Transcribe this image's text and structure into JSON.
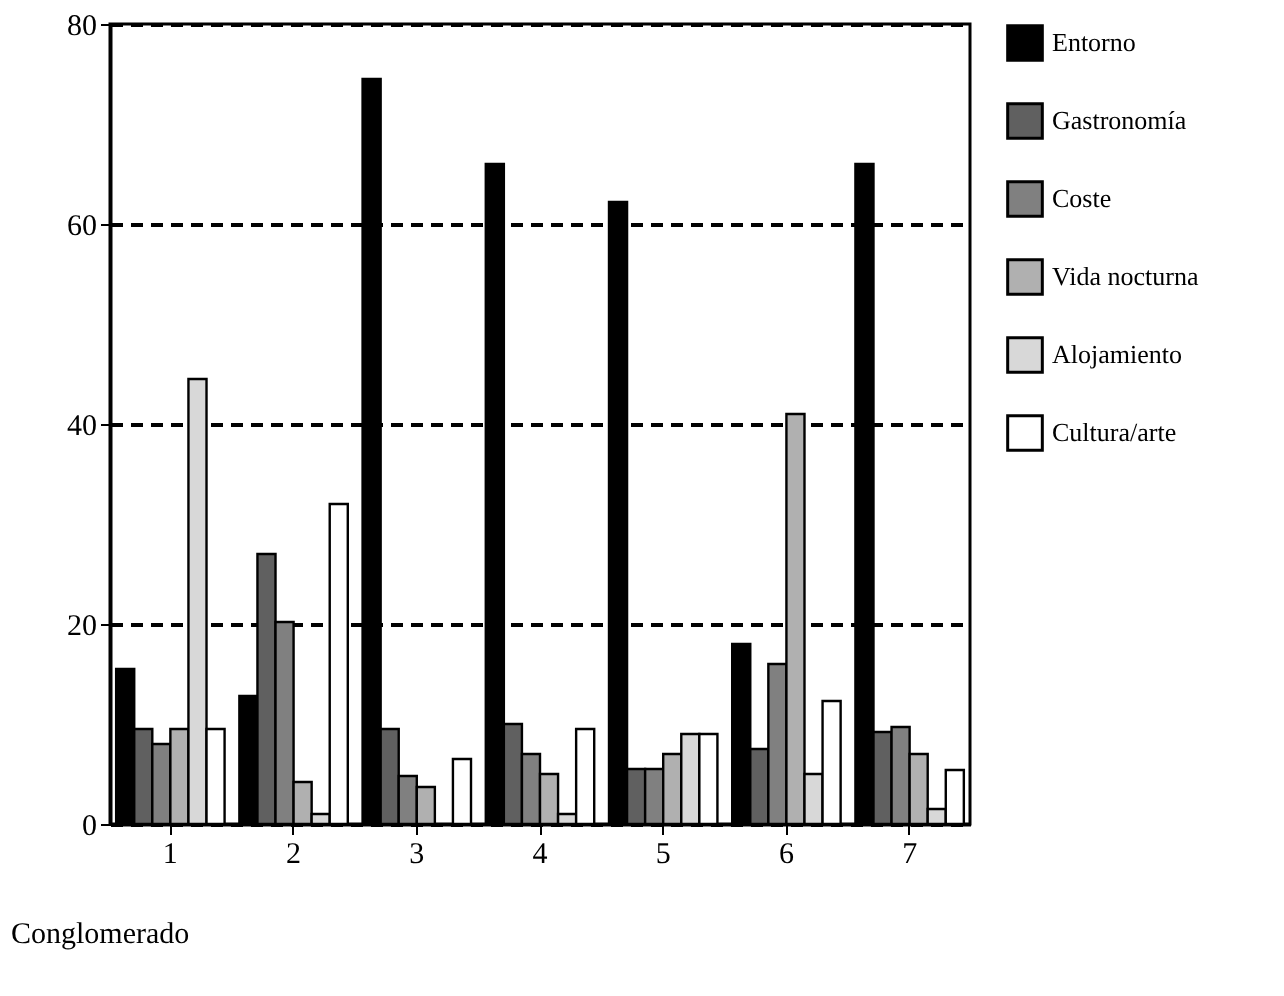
{
  "chart_data": {
    "type": "bar",
    "xlabel": "Conglomerado",
    "categories": [
      "1",
      "2",
      "3",
      "4",
      "5",
      "6",
      "7"
    ],
    "series": [
      {
        "name": "Entorno",
        "color": "#000000",
        "values": [
          15.5,
          12.8,
          74.5,
          66,
          62.2,
          18,
          66
        ]
      },
      {
        "name": "Gastronomía",
        "color": "#606060",
        "values": [
          9.5,
          27,
          9.5,
          10,
          5.5,
          7.5,
          9.2
        ]
      },
      {
        "name": "Coste",
        "color": "#808080",
        "values": [
          8,
          20.2,
          4.8,
          7,
          5.5,
          16,
          9.7
        ]
      },
      {
        "name": "Vida nocturna",
        "color": "#b0b0b0",
        "values": [
          9.5,
          4.2,
          3.7,
          5,
          7,
          41,
          7
        ]
      },
      {
        "name": "Alojamiento",
        "color": "#d8d8d8",
        "values": [
          44.5,
          1,
          null,
          1,
          9,
          5,
          1.5
        ]
      },
      {
        "name": "Cultura/arte",
        "color": "#ffffff",
        "values": [
          9.5,
          32,
          6.5,
          9.5,
          9,
          12.3,
          5.4
        ]
      }
    ],
    "ylim": [
      0,
      80
    ],
    "yticks": [
      0,
      20,
      40,
      60,
      80
    ],
    "grid": "y",
    "legend": "right"
  }
}
